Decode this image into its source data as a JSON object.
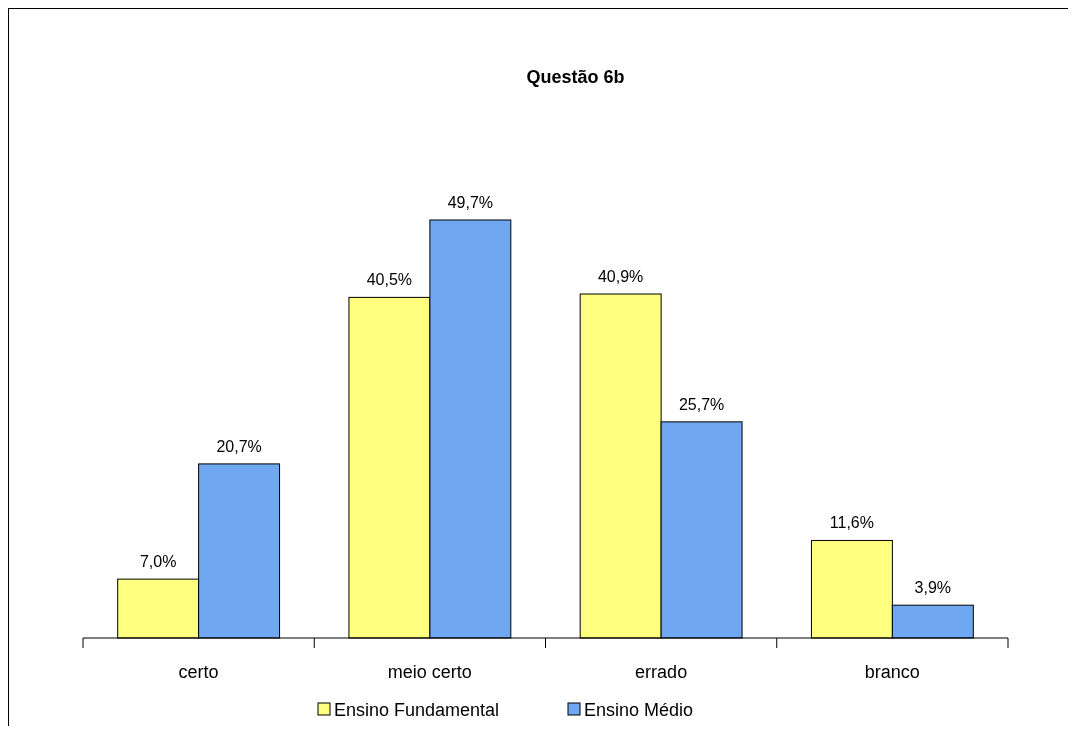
{
  "chart_data": {
    "type": "bar",
    "title": "Questão 6b",
    "categories": [
      "certo",
      "meio certo",
      "errado",
      "branco"
    ],
    "series": [
      {
        "name": "Ensino Fundamental",
        "color": "#ffff80",
        "values": [
          7.0,
          40.5,
          40.9,
          11.6
        ],
        "value_labels": [
          "7,0%",
          "40,5%",
          "40,9%",
          "11,6%"
        ]
      },
      {
        "name": "Ensino Médio",
        "color": "#6fa8f0",
        "values": [
          20.7,
          49.7,
          25.7,
          3.9
        ],
        "value_labels": [
          "20,7%",
          "49,7%",
          "25,7%",
          "3,9%"
        ]
      }
    ],
    "legend": "bottom"
  }
}
